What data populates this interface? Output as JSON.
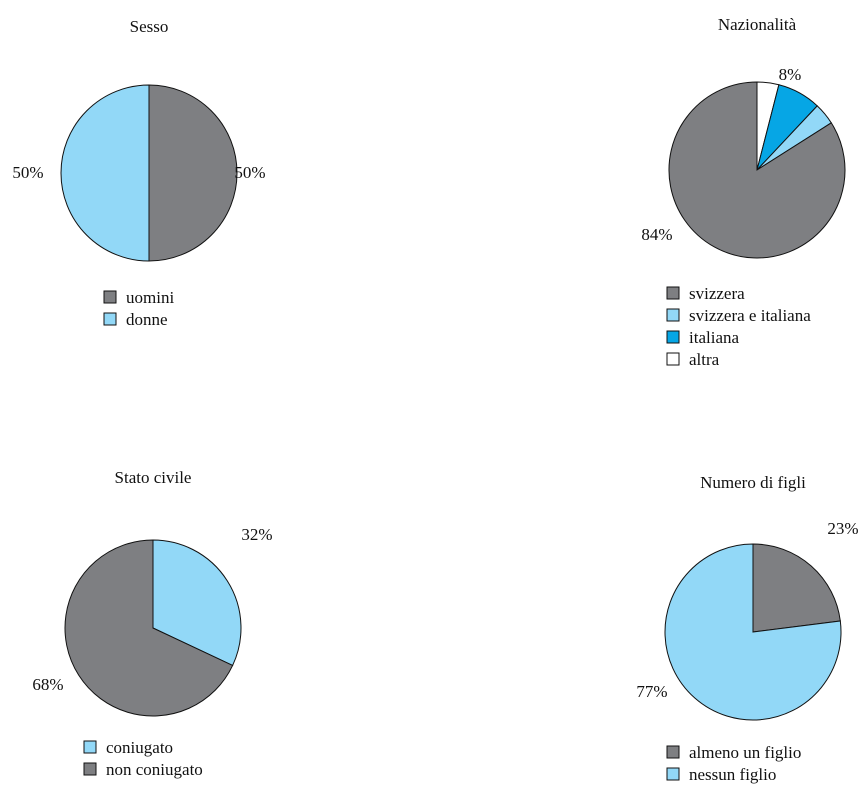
{
  "colors": {
    "grey": "#7e7f82",
    "light_blue": "#92d8f7",
    "blue": "#06a6e5",
    "white": "#ffffff",
    "outline": "#111111"
  },
  "chart_data": [
    {
      "type": "pie",
      "title": "Sesso",
      "start": "top",
      "direction": "clockwise",
      "legend_position": "bottom",
      "slices": [
        {
          "label": "uomini",
          "value": 50,
          "color": "#7e7f82",
          "value_label": "50%"
        },
        {
          "label": "donne",
          "value": 50,
          "color": "#92d8f7",
          "value_label": "50%"
        }
      ]
    },
    {
      "type": "pie",
      "title": "Nazionalità",
      "start": "top",
      "direction": "clockwise",
      "legend_position": "bottom",
      "slices": [
        {
          "label": "altra",
          "value": 4,
          "color": "#ffffff",
          "value_label": ""
        },
        {
          "label": "italiana",
          "value": 8,
          "color": "#06a6e5",
          "value_label": "8%"
        },
        {
          "label": "svizzera e italiana",
          "value": 4,
          "color": "#92d8f7",
          "value_label": ""
        },
        {
          "label": "svizzera",
          "value": 84,
          "color": "#7e7f82",
          "value_label": "84%"
        }
      ],
      "legend_order": [
        "svizzera",
        "svizzera e italiana",
        "italiana",
        "altra"
      ]
    },
    {
      "type": "pie",
      "title": "Stato civile",
      "start": "top",
      "direction": "clockwise",
      "legend_position": "bottom",
      "slices": [
        {
          "label": "coniugato",
          "value": 32,
          "color": "#92d8f7",
          "value_label": "32%"
        },
        {
          "label": "non coniugato",
          "value": 68,
          "color": "#7e7f82",
          "value_label": "68%"
        }
      ]
    },
    {
      "type": "pie",
      "title": "Numero di figli",
      "start": "top",
      "direction": "clockwise",
      "legend_position": "bottom",
      "slices": [
        {
          "label": "almeno un figlio",
          "value": 23,
          "color": "#7e7f82",
          "value_label": "23%"
        },
        {
          "label": "nessun figlio",
          "value": 77,
          "color": "#92d8f7",
          "value_label": "77%"
        }
      ]
    }
  ]
}
